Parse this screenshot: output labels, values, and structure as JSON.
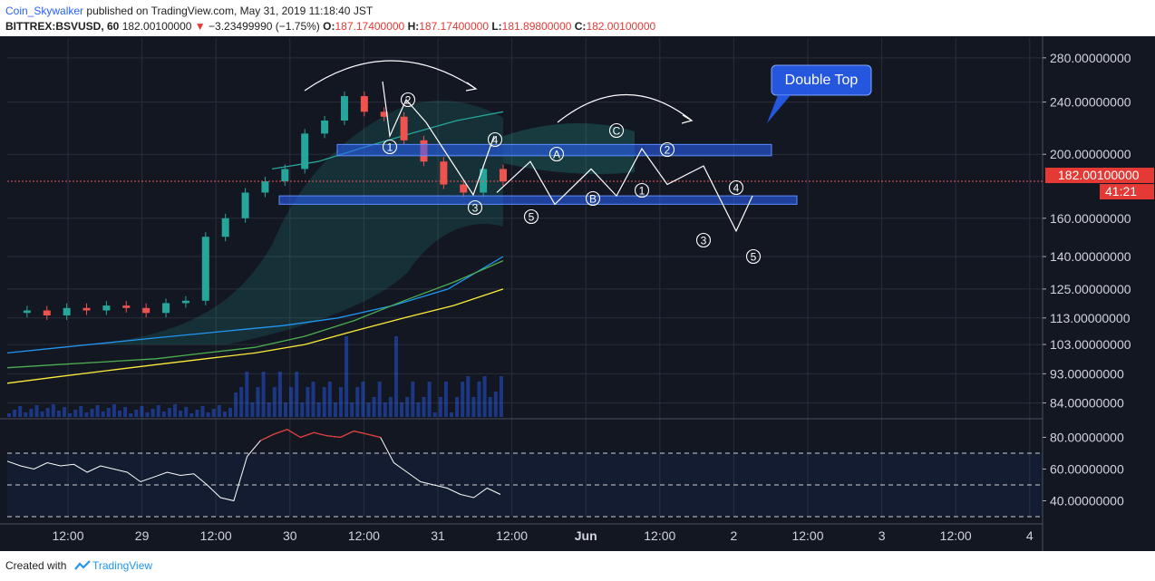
{
  "header": {
    "user": "Coin_Skywalker",
    "published": "published on TradingView.com, May 31, 2019 11:18:40 JST",
    "symbol": "BITTREX:BSVUSD, 60",
    "last": "182.00100000",
    "change": "−3.23499990 (−1.75%)",
    "o_label": "O:",
    "o": "187.17400000",
    "h_label": "H:",
    "h": "187.17400000",
    "l_label": "L:",
    "l": "181.89800000",
    "c_label": "C:",
    "c": "182.00100000"
  },
  "footer": {
    "created_with": "Created with",
    "brand": "TradingView"
  },
  "colors": {
    "background": "#131722",
    "up": "#26a69a",
    "down": "#ef5350",
    "box": "#2962ff",
    "rsi": "#ffffff",
    "rsi_high": "#e53935",
    "ma_blue": "#2196f3",
    "ma_green": "#4caf50",
    "ma_yellow": "#ffeb3b"
  },
  "annotations": {
    "callout": "Double Top",
    "price_tag": "182.00100000",
    "countdown": "41:21",
    "wave_labels": [
      "1",
      "2",
      "3",
      "4",
      "5",
      "A",
      "B",
      "C",
      "1",
      "2",
      "3",
      "4",
      "5"
    ]
  },
  "chart_data": [
    {
      "type": "line",
      "panel": "price",
      "scale": "log",
      "y_ticks": [
        "280.00000000",
        "240.00000000",
        "200.00000000",
        "160.00000000",
        "140.00000000",
        "125.00000000",
        "113.00000000",
        "103.00000000",
        "93.00000000",
        "84.00000000"
      ],
      "x_ticks": [
        "12:00",
        "29",
        "12:00",
        "30",
        "12:00",
        "31",
        "12:00",
        "Jun",
        "12:00",
        "2",
        "12:00",
        "3",
        "12:00",
        "4"
      ],
      "last_price": 182.001,
      "ylim": [
        80,
        300
      ],
      "series": [
        {
          "values": [
            115,
            116,
            114,
            117,
            116,
            118,
            117,
            115,
            119,
            120,
            150,
            160,
            175,
            182,
            190,
            215,
            225,
            245,
            232,
            228,
            210,
            195,
            180,
            175,
            190,
            182
          ]
        },
        {
          "values": [
            190,
            195,
            205,
            215,
            225,
            232
          ]
        },
        {
          "values": [
            100,
            102,
            104,
            106,
            108,
            110,
            113,
            118,
            125,
            140
          ]
        },
        {
          "values": [
            90,
            92,
            94,
            96,
            98,
            100,
            103,
            108,
            113,
            118,
            125
          ]
        }
      ],
      "projection_path": [
        175,
        195,
        168,
        190,
        173,
        204,
        180,
        192,
        153,
        173,
        142
      ],
      "zones": [
        [
          199,
          207
        ],
        [
          168,
          173
        ]
      ]
    },
    {
      "type": "line",
      "panel": "rsi",
      "y_ticks": [
        "80.00000000",
        "60.00000000",
        "40.00000000"
      ],
      "ylim": [
        30,
        90
      ],
      "bands": [
        70,
        50,
        30
      ],
      "values": [
        65,
        62,
        60,
        64,
        62,
        63,
        58,
        62,
        60,
        58,
        52,
        55,
        58,
        56,
        57,
        50,
        42,
        40,
        68,
        78,
        82,
        85,
        80,
        83,
        81,
        80,
        84,
        82,
        80,
        64,
        58,
        52,
        50,
        48,
        44,
        42,
        48,
        44
      ]
    }
  ]
}
